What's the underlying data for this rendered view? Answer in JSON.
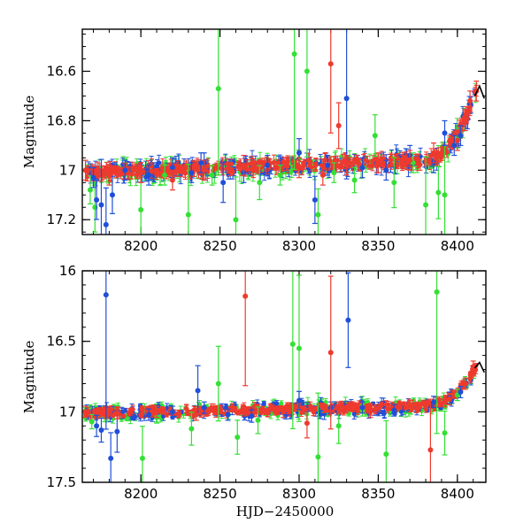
{
  "chart_data": [
    {
      "type": "scatter",
      "title": "",
      "xlabel": "",
      "ylabel": "Magnitude",
      "xlim": [
        8163,
        8418
      ],
      "ylim": [
        17.26,
        16.43
      ],
      "y_inverted": true,
      "x_ticks": [
        8200,
        8250,
        8300,
        8350,
        8400
      ],
      "y_ticks": [
        16.6,
        16.8,
        17,
        17.2
      ],
      "y_tick_labels": [
        "16.6",
        "16.8",
        "17",
        "17.2"
      ],
      "series": [
        {
          "color": "#1f4fd8",
          "marker": "circle with errorbars",
          "points": [
            [
              8170,
              17.03
            ],
            [
              8172,
              17.12
            ],
            [
              8175,
              17.14
            ],
            [
              8178,
              17.22
            ],
            [
              8182,
              17.1
            ],
            [
              8190,
              17.0
            ],
            [
              8205,
              17.02
            ],
            [
              8220,
              16.99
            ],
            [
              8232,
              17.01
            ],
            [
              8238,
              16.97
            ],
            [
              8240,
              16.97
            ],
            [
              8252,
              17.05
            ],
            [
              8265,
              17.01
            ],
            [
              8280,
              16.98
            ],
            [
              8300,
              16.93
            ],
            [
              8310,
              17.12
            ],
            [
              8318,
              16.98
            ],
            [
              8330,
              16.71
            ],
            [
              8340,
              16.99
            ],
            [
              8355,
              17.0
            ],
            [
              8370,
              16.94
            ],
            [
              8385,
              16.97
            ],
            [
              8392,
              16.85
            ],
            [
              8398,
              16.9
            ],
            [
              8402,
              16.86
            ]
          ]
        },
        {
          "color": "#33e033",
          "marker": "circle with errorbars",
          "points": [
            [
              8168,
              17.08
            ],
            [
              8171,
              17.15
            ],
            [
              8200,
              17.16
            ],
            [
              8215,
              17.02
            ],
            [
              8230,
              17.18
            ],
            [
              8245,
              17.02
            ],
            [
              8249,
              16.67
            ],
            [
              8260,
              17.2
            ],
            [
              8275,
              17.05
            ],
            [
              8288,
              17.02
            ],
            [
              8297,
              16.53
            ],
            [
              8305,
              16.6
            ],
            [
              8312,
              17.18
            ],
            [
              8322,
              17.01
            ],
            [
              8335,
              17.04
            ],
            [
              8348,
              16.86
            ],
            [
              8360,
              17.05
            ],
            [
              8372,
              16.97
            ],
            [
              8380,
              17.14
            ],
            [
              8388,
              17.09
            ],
            [
              8392,
              17.1
            ],
            [
              8400,
              16.87
            ]
          ]
        },
        {
          "color": "#ee3a2e",
          "marker": "circle with errorbars",
          "points": [
            [
              8165,
              17.0
            ],
            [
              8180,
              17.02
            ],
            [
              8200,
              17.01
            ],
            [
              8220,
              17.04
            ],
            [
              8240,
              17.0
            ],
            [
              8265,
              16.98
            ],
            [
              8300,
              16.99
            ],
            [
              8315,
              17.02
            ],
            [
              8320,
              16.57
            ],
            [
              8325,
              16.82
            ],
            [
              8330,
              16.98
            ],
            [
              8350,
              16.97
            ],
            [
              8370,
              16.96
            ],
            [
              8385,
              16.93
            ],
            [
              8400,
              16.88
            ],
            [
              8405,
              16.8
            ],
            [
              8408,
              16.72
            ],
            [
              8412,
              16.68
            ]
          ]
        }
      ],
      "trend": {
        "color": "#000000",
        "x": [
          8411,
          8414,
          8417
        ],
        "y": [
          16.7,
          16.66,
          16.71
        ]
      }
    },
    {
      "type": "scatter",
      "title": "",
      "xlabel": "HJD−2450000",
      "ylabel": "Magnitude",
      "xlim": [
        8163,
        8418
      ],
      "ylim": [
        17.5,
        16.0
      ],
      "y_inverted": true,
      "x_ticks": [
        8200,
        8250,
        8300,
        8350,
        8400
      ],
      "y_ticks": [
        16.0,
        16.5,
        17.0,
        17.5
      ],
      "y_tick_labels": [
        "16",
        "16.5",
        "17",
        "17.5"
      ],
      "series": [
        {
          "color": "#1f4fd8",
          "marker": "circle with errorbars",
          "points": [
            [
              8172,
              17.1
            ],
            [
              8175,
              17.13
            ],
            [
              8178,
              16.17
            ],
            [
              8181,
              17.33
            ],
            [
              8185,
              17.14
            ],
            [
              8205,
              17.02
            ],
            [
              8220,
              17.0
            ],
            [
              8236,
              16.85
            ],
            [
              8240,
              16.97
            ],
            [
              8255,
              17.02
            ],
            [
              8270,
              17.03
            ],
            [
              8300,
              16.92
            ],
            [
              8320,
              16.97
            ],
            [
              8331,
              16.35
            ],
            [
              8340,
              16.97
            ],
            [
              8360,
              16.99
            ],
            [
              8385,
              16.93
            ],
            [
              8395,
              16.9
            ],
            [
              8402,
              16.86
            ]
          ]
        },
        {
          "color": "#33e033",
          "marker": "circle with errorbars",
          "points": [
            [
              8169,
              17.07
            ],
            [
              8201,
              17.33
            ],
            [
              8210,
              17.04
            ],
            [
              8232,
              17.12
            ],
            [
              8249,
              16.8
            ],
            [
              8261,
              17.18
            ],
            [
              8274,
              17.06
            ],
            [
              8296,
              16.52
            ],
            [
              8300,
              16.55
            ],
            [
              8312,
              17.32
            ],
            [
              8325,
              17.1
            ],
            [
              8340,
              16.99
            ],
            [
              8355,
              17.3
            ],
            [
              8370,
              16.96
            ],
            [
              8387,
              16.15
            ],
            [
              8392,
              17.15
            ],
            [
              8400,
              16.88
            ]
          ]
        },
        {
          "color": "#ee3a2e",
          "marker": "circle with errorbars",
          "points": [
            [
              8165,
              17.0
            ],
            [
              8185,
              17.01
            ],
            [
              8210,
              17.0
            ],
            [
              8235,
              17.02
            ],
            [
              8266,
              16.18
            ],
            [
              8290,
              17.0
            ],
            [
              8305,
              17.08
            ],
            [
              8320,
              16.58
            ],
            [
              8325,
              16.97
            ],
            [
              8345,
              17.0
            ],
            [
              8370,
              16.96
            ],
            [
              8383,
              17.27
            ],
            [
              8395,
              16.91
            ],
            [
              8405,
              16.8
            ],
            [
              8410,
              16.68
            ]
          ]
        }
      ],
      "trend": {
        "color": "#000000",
        "x": [
          8411,
          8414,
          8417
        ],
        "y": [
          16.69,
          16.65,
          16.72
        ]
      }
    }
  ]
}
